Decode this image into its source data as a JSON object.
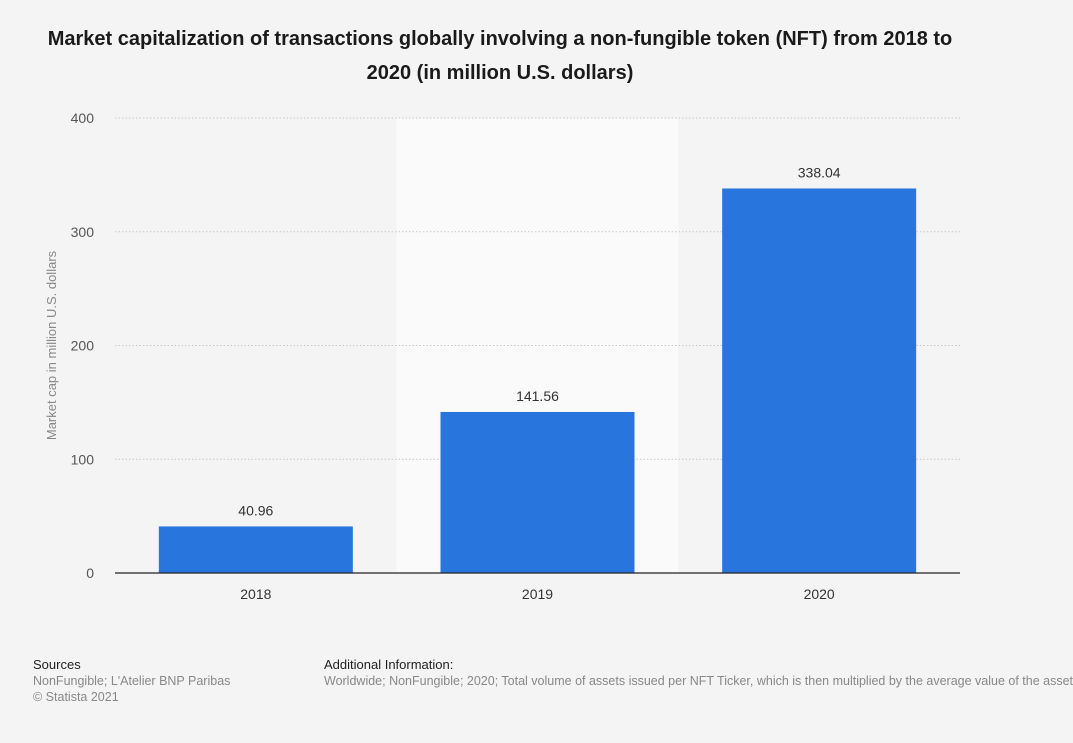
{
  "chart_data": {
    "type": "bar",
    "title": "Market capitalization of transactions globally involving a non-fungible token (NFT) from 2018 to 2020 (in million U.S. dollars)",
    "xlabel": "",
    "ylabel": "Market cap in million U.S. dollars",
    "categories": [
      "2018",
      "2019",
      "2020"
    ],
    "values": [
      40.96,
      141.56,
      338.04
    ],
    "value_labels": [
      "40.96",
      "141.56",
      "338.04"
    ],
    "yticks": [
      0,
      100,
      200,
      300,
      400
    ],
    "ylim": [
      0,
      400
    ],
    "grid": true,
    "bar_color": "#2876dd",
    "highlight_band_color": "#fafafa",
    "grid_color": "#c8c8c8"
  },
  "footer": {
    "sources_heading": "Sources",
    "sources_line1": "NonFungible; L'Atelier BNP Paribas",
    "sources_line2": "© Statista 2021",
    "additional_heading": "Additional Information:",
    "additional_text": "Worldwide; NonFungible; 2020; Total volume of assets issued per NFT Ticker, which is then multiplied by the average value of the asset"
  }
}
